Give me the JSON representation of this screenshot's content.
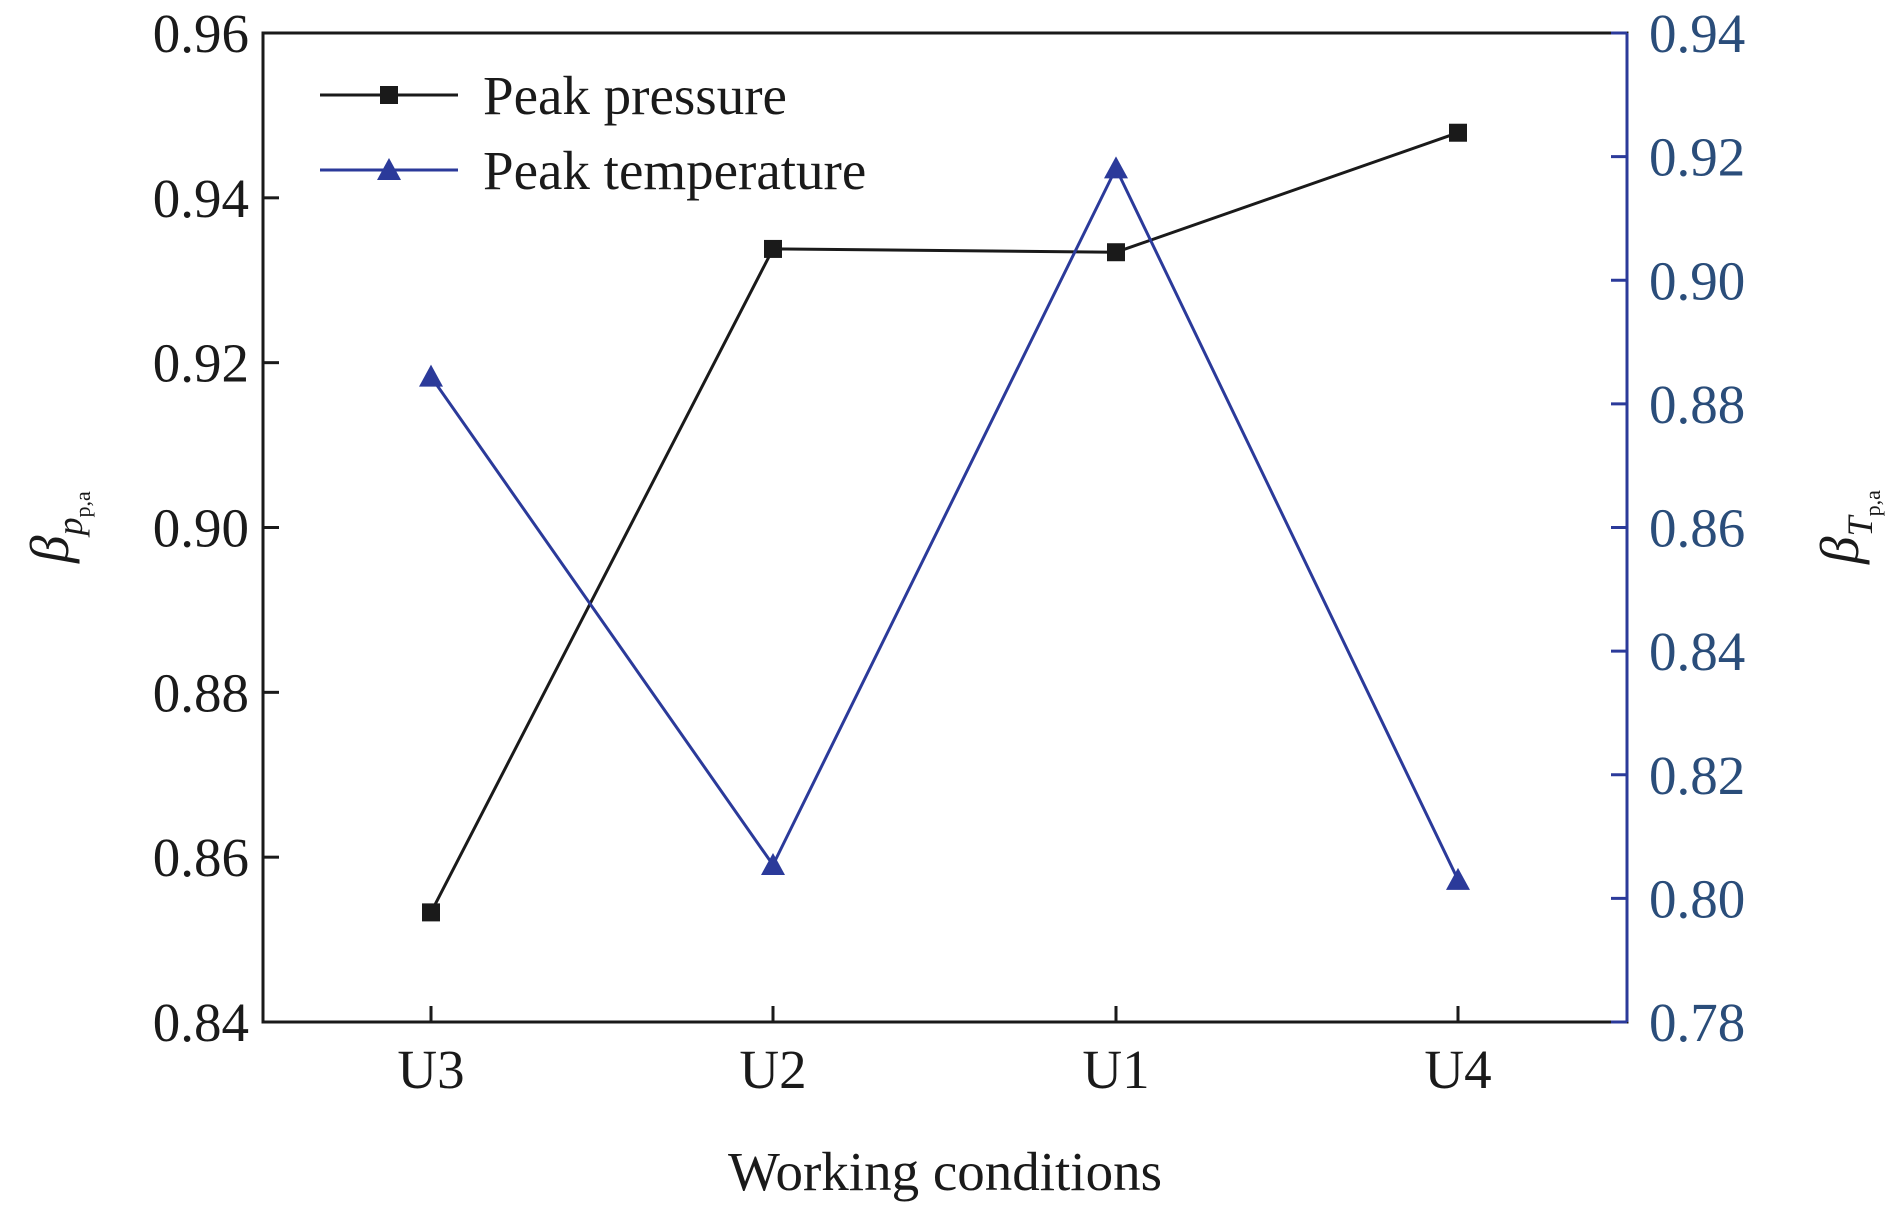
{
  "chart_data": {
    "type": "line",
    "categories": [
      "U3",
      "U2",
      "U1",
      "U4"
    ],
    "xlabel": "Working conditions",
    "ylabel_left": {
      "symbol": "β",
      "sub": "p",
      "subsub": "p,a"
    },
    "ylabel_right": {
      "symbol": "β",
      "sub": "T",
      "subsub": "p,a"
    },
    "ylim_left": [
      0.84,
      0.96
    ],
    "ylim_right": [
      0.78,
      0.94
    ],
    "yticks_left": [
      "0.84",
      "0.86",
      "0.88",
      "0.90",
      "0.92",
      "0.94",
      "0.96"
    ],
    "yticks_right": [
      "0.78",
      "0.80",
      "0.82",
      "0.84",
      "0.86",
      "0.88",
      "0.90",
      "0.92",
      "0.94"
    ],
    "legend_position": "top-left",
    "grid": false,
    "series": [
      {
        "name": "Peak pressure",
        "axis": "left",
        "marker": "square",
        "color": "#1a1a1a",
        "values": [
          0.8533,
          0.9338,
          0.9334,
          0.9479
        ]
      },
      {
        "name": "Peak temperature",
        "axis": "right",
        "marker": "triangle",
        "color": "#2b3a9a",
        "values": [
          0.8844,
          0.8054,
          0.9181,
          0.803
        ]
      }
    ]
  },
  "colors": {
    "left_axis": "#1a1a1a",
    "right_axis": "#2b3a9a",
    "right_tick_text": "#2a4d7a"
  }
}
